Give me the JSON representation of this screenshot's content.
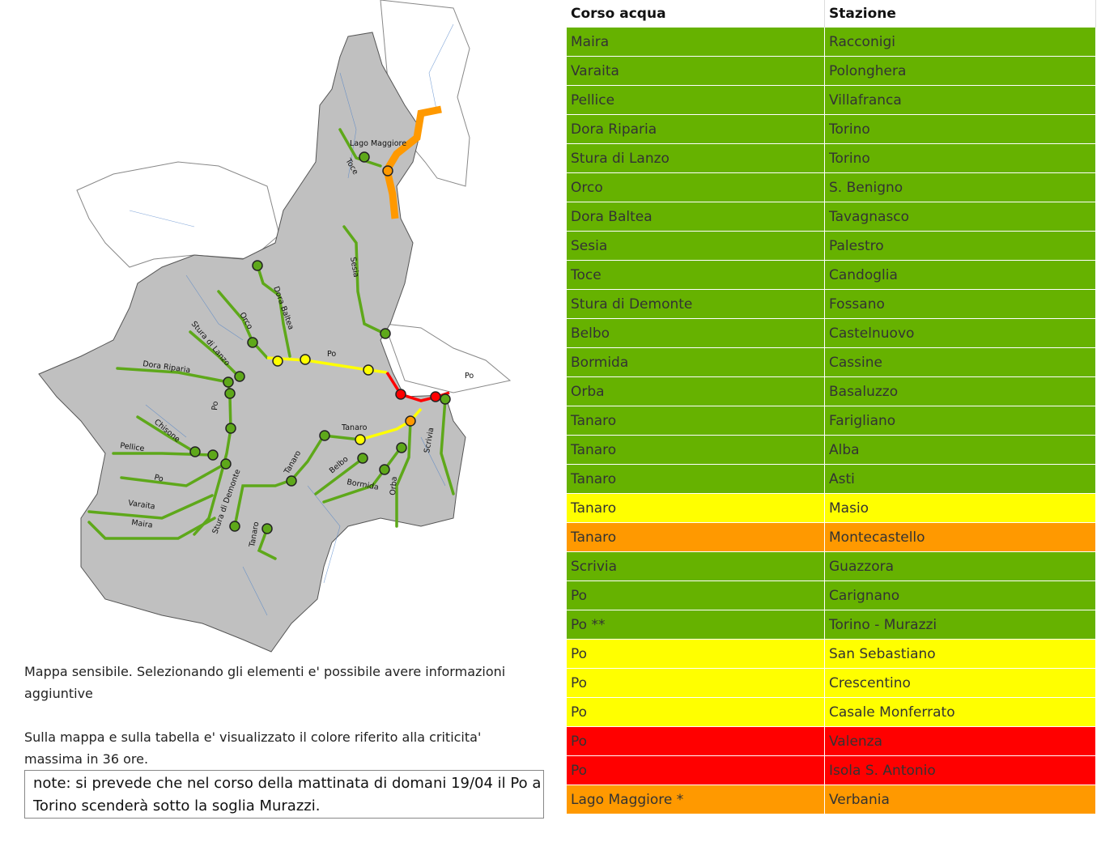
{
  "map": {
    "labels": [
      "Lago Maggiore",
      "Toce",
      "Sesia",
      "Dora Baltea",
      "Orco",
      "Po",
      "Stura di Lanzo",
      "Dora Riparia",
      "Po",
      "Chisone",
      "Pellice",
      "Po",
      "Varaita",
      "Maira",
      "Stura di Demonte",
      "Tanaro",
      "Tanaro",
      "Tanaro",
      "Belbo",
      "Bormida",
      "Orba",
      "Scrivia",
      "Po"
    ]
  },
  "description": [
    "Mappa sensibile. Selezionando gli elementi e' possibile avere informazioni aggiuntive",
    "Sulla mappa e sulla tabella e' visualizzato il colore riferito alla criticita' massima in 36 ore."
  ],
  "note": "note: si prevede che nel corso della mattinata di domani 19/04 il Po a Torino scenderà sotto la soglia Murazzi.",
  "table": {
    "headers": [
      "Corso acqua",
      "Stazione"
    ],
    "rows": [
      {
        "course": "Maira",
        "station": "Racconigi",
        "color": "#66b200"
      },
      {
        "course": "Varaita",
        "station": "Polonghera",
        "color": "#66b200"
      },
      {
        "course": "Pellice",
        "station": "Villafranca",
        "color": "#66b200"
      },
      {
        "course": "Dora Riparia",
        "station": "Torino",
        "color": "#66b200"
      },
      {
        "course": "Stura di Lanzo",
        "station": "Torino",
        "color": "#66b200"
      },
      {
        "course": "Orco",
        "station": "S. Benigno",
        "color": "#66b200"
      },
      {
        "course": "Dora Baltea",
        "station": "Tavagnasco",
        "color": "#66b200"
      },
      {
        "course": "Sesia",
        "station": "Palestro",
        "color": "#66b200"
      },
      {
        "course": "Toce",
        "station": "Candoglia",
        "color": "#66b200"
      },
      {
        "course": "Stura di Demonte",
        "station": "Fossano",
        "color": "#66b200"
      },
      {
        "course": "Belbo",
        "station": "Castelnuovo",
        "color": "#66b200"
      },
      {
        "course": "Bormida",
        "station": "Cassine",
        "color": "#66b200"
      },
      {
        "course": "Orba",
        "station": "Basaluzzo",
        "color": "#66b200"
      },
      {
        "course": "Tanaro",
        "station": "Farigliano",
        "color": "#66b200"
      },
      {
        "course": "Tanaro",
        "station": "Alba",
        "color": "#66b200"
      },
      {
        "course": "Tanaro",
        "station": "Asti",
        "color": "#66b200"
      },
      {
        "course": "Tanaro",
        "station": "Masio",
        "color": "#ffff00"
      },
      {
        "course": "Tanaro",
        "station": "Montecastello",
        "color": "#ff9900"
      },
      {
        "course": "Scrivia",
        "station": "Guazzora",
        "color": "#66b200"
      },
      {
        "course": "Po",
        "station": "Carignano",
        "color": "#66b200"
      },
      {
        "course": "Po **",
        "station": "Torino - Murazzi",
        "color": "#66b200"
      },
      {
        "course": "Po",
        "station": "San Sebastiano",
        "color": "#ffff00"
      },
      {
        "course": "Po",
        "station": "Crescentino",
        "color": "#ffff00"
      },
      {
        "course": "Po",
        "station": "Casale Monferrato",
        "color": "#ffff00"
      },
      {
        "course": "Po",
        "station": "Valenza",
        "color": "#ff0000"
      },
      {
        "course": "Po",
        "station": "Isola S. Antonio",
        "color": "#ff0000"
      },
      {
        "course": "Lago Maggiore *",
        "station": "Verbania",
        "color": "#ff9900"
      }
    ]
  }
}
